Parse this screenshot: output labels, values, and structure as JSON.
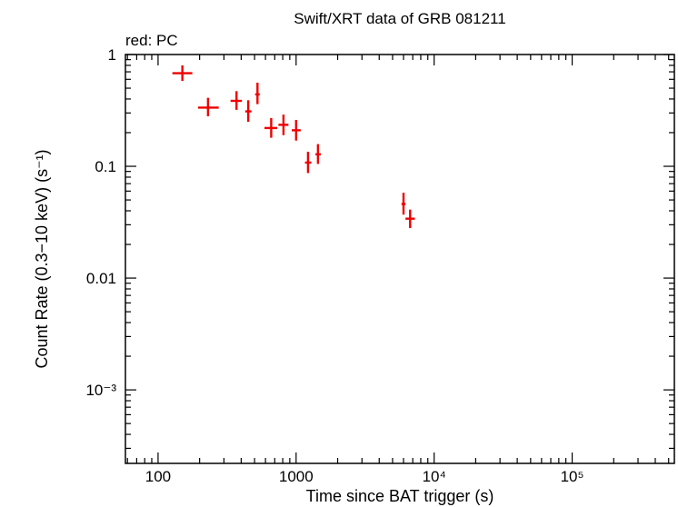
{
  "chart_data": {
    "type": "scatter",
    "title": "Swift/XRT data of GRB 081211",
    "subtitle": "red: PC",
    "xlabel": "Time since BAT trigger (s)",
    "ylabel": "Count Rate (0.3−10 keV) (s⁻¹)",
    "x_scale": "log",
    "y_scale": "log",
    "xlim": [
      58,
      550000
    ],
    "ylim": [
      0.00022,
      1.0
    ],
    "grid": false,
    "x_ticks": [
      {
        "value": 100,
        "label": "100"
      },
      {
        "value": 1000,
        "label": "1000"
      },
      {
        "value": 10000,
        "label": "10⁴"
      },
      {
        "value": 100000,
        "label": "10⁵"
      }
    ],
    "y_ticks": [
      {
        "value": 1,
        "label": "1"
      },
      {
        "value": 0.1,
        "label": "0.1"
      },
      {
        "value": 0.01,
        "label": "0.01"
      },
      {
        "value": 0.001,
        "label": "10⁻³"
      }
    ],
    "series": [
      {
        "color": "#ee0000",
        "points": [
          {
            "x": 150,
            "xlo": 127,
            "xhi": 177,
            "y": 0.68,
            "ylo": 0.58,
            "yhi": 0.8
          },
          {
            "x": 230,
            "xlo": 195,
            "xhi": 275,
            "y": 0.335,
            "ylo": 0.28,
            "yhi": 0.41
          },
          {
            "x": 370,
            "xlo": 335,
            "xhi": 405,
            "y": 0.385,
            "ylo": 0.32,
            "yhi": 0.47
          },
          {
            "x": 450,
            "xlo": 428,
            "xhi": 475,
            "y": 0.31,
            "ylo": 0.25,
            "yhi": 0.39
          },
          {
            "x": 525,
            "xlo": 505,
            "xhi": 545,
            "y": 0.44,
            "ylo": 0.36,
            "yhi": 0.56
          },
          {
            "x": 660,
            "xlo": 590,
            "xhi": 730,
            "y": 0.22,
            "ylo": 0.18,
            "yhi": 0.27
          },
          {
            "x": 810,
            "xlo": 745,
            "xhi": 880,
            "y": 0.235,
            "ylo": 0.19,
            "yhi": 0.29
          },
          {
            "x": 1000,
            "xlo": 930,
            "xhi": 1080,
            "y": 0.21,
            "ylo": 0.17,
            "yhi": 0.26
          },
          {
            "x": 1220,
            "xlo": 1160,
            "xhi": 1290,
            "y": 0.108,
            "ylo": 0.087,
            "yhi": 0.135
          },
          {
            "x": 1440,
            "xlo": 1380,
            "xhi": 1510,
            "y": 0.128,
            "ylo": 0.105,
            "yhi": 0.158
          },
          {
            "x": 6000,
            "xlo": 5800,
            "xhi": 6200,
            "y": 0.046,
            "ylo": 0.037,
            "yhi": 0.058
          },
          {
            "x": 6700,
            "xlo": 6200,
            "xhi": 7250,
            "y": 0.034,
            "ylo": 0.028,
            "yhi": 0.041
          }
        ]
      }
    ]
  }
}
